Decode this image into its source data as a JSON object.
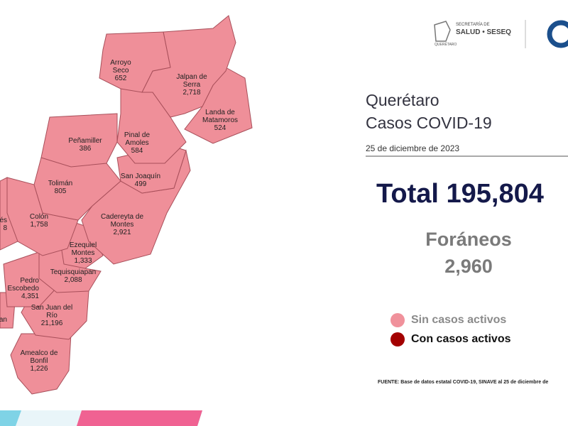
{
  "header": {
    "agency_line1": "SECRETARÍA DE",
    "agency_line2": "SALUD • SESEQ",
    "state": "QUERÉTARO"
  },
  "title": {
    "line1": "Querétaro",
    "line2": "Casos COVID-19",
    "date": "25 de diciembre de 2023"
  },
  "total": {
    "label": "Total",
    "value": "195,804"
  },
  "foreign": {
    "label": "Foráneos",
    "value": "2,960"
  },
  "legend": [
    {
      "label": "Sin casos activos",
      "color": "#f0919b"
    },
    {
      "label": "Con casos activos",
      "color": "#a30000"
    }
  ],
  "map_color": "#ef8f99",
  "municipalities": [
    {
      "name": "Arroyo Seco",
      "cases": "652"
    },
    {
      "name": "Jalpan de Serra",
      "cases": "2,718"
    },
    {
      "name": "Landa de Matamoros",
      "cases": "524"
    },
    {
      "name": "Pinal de Amoles",
      "cases": "584"
    },
    {
      "name": "Peñamiller",
      "cases": "386"
    },
    {
      "name": "San Joaquín",
      "cases": "499"
    },
    {
      "name": "Tolimán",
      "cases": "805"
    },
    {
      "name": "Cadereyta de Montes",
      "cases": "2,921"
    },
    {
      "name": "Colón",
      "cases": "1,758"
    },
    {
      "name": "és",
      "cases": "8"
    },
    {
      "name": "Ezequiel Montes",
      "cases": "1,333"
    },
    {
      "name": "Tequisquiapan",
      "cases": "2,088"
    },
    {
      "name": "Pedro Escobedo",
      "cases": "4,351"
    },
    {
      "name": "an",
      "cases": null
    },
    {
      "name": "San Juan del Río",
      "cases": "21,196"
    },
    {
      "name": "Amealco de Bonfil",
      "cases": "1,226"
    }
  ],
  "source": "FUENTE: Base de datos estatal COVID-19, SINAVE al 25 de diciembre de"
}
